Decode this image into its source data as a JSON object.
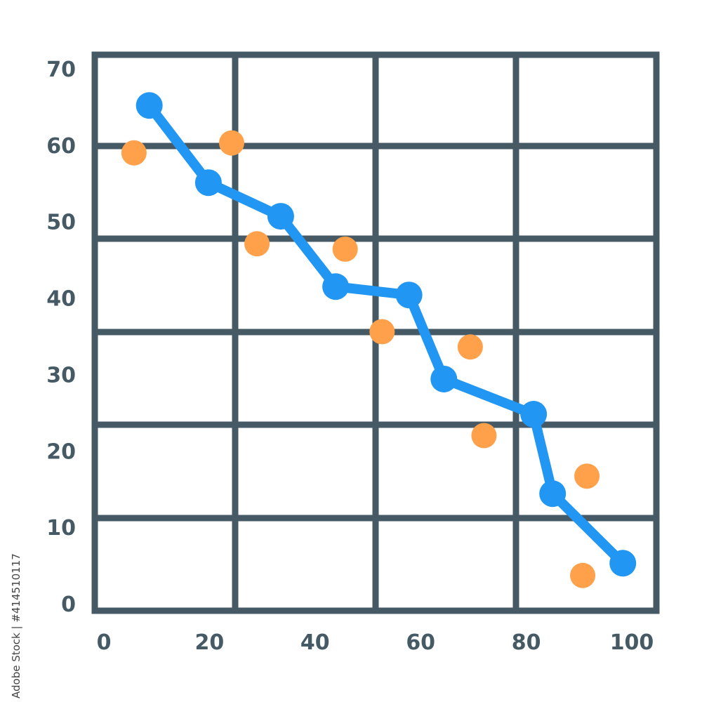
{
  "chart_data": {
    "type": "scatter",
    "title": "",
    "xlabel": "",
    "ylabel": "",
    "xlim": [
      0,
      100
    ],
    "ylim": [
      0,
      70
    ],
    "x_ticks": [
      "0",
      "20",
      "40",
      "60",
      "80",
      "100"
    ],
    "y_ticks": [
      "0",
      "10",
      "20",
      "30",
      "40",
      "50",
      "60",
      "70"
    ],
    "grid": true,
    "series": [
      {
        "style": "line-with-markers",
        "color": "#2196f3",
        "x": [
          8.6,
          19.8,
          33.5,
          43.9,
          57.8,
          64.4,
          81.4,
          85.0,
          98.3
        ],
        "y": [
          65.2,
          55.1,
          50.7,
          41.5,
          40.4,
          29.4,
          24.8,
          14.4,
          5.3
        ]
      },
      {
        "style": "markers",
        "color": "#ffa04a",
        "x": [
          5.7,
          24.2,
          29.0,
          45.7,
          52.7,
          69.4,
          72.0,
          91.5,
          90.7
        ],
        "y": [
          59.0,
          60.3,
          47.1,
          46.4,
          35.6,
          33.6,
          22.0,
          16.7,
          3.7
        ]
      }
    ]
  },
  "colors": {
    "grid": "#455a64"
  },
  "watermark": "Adobe Stock | #414510117"
}
